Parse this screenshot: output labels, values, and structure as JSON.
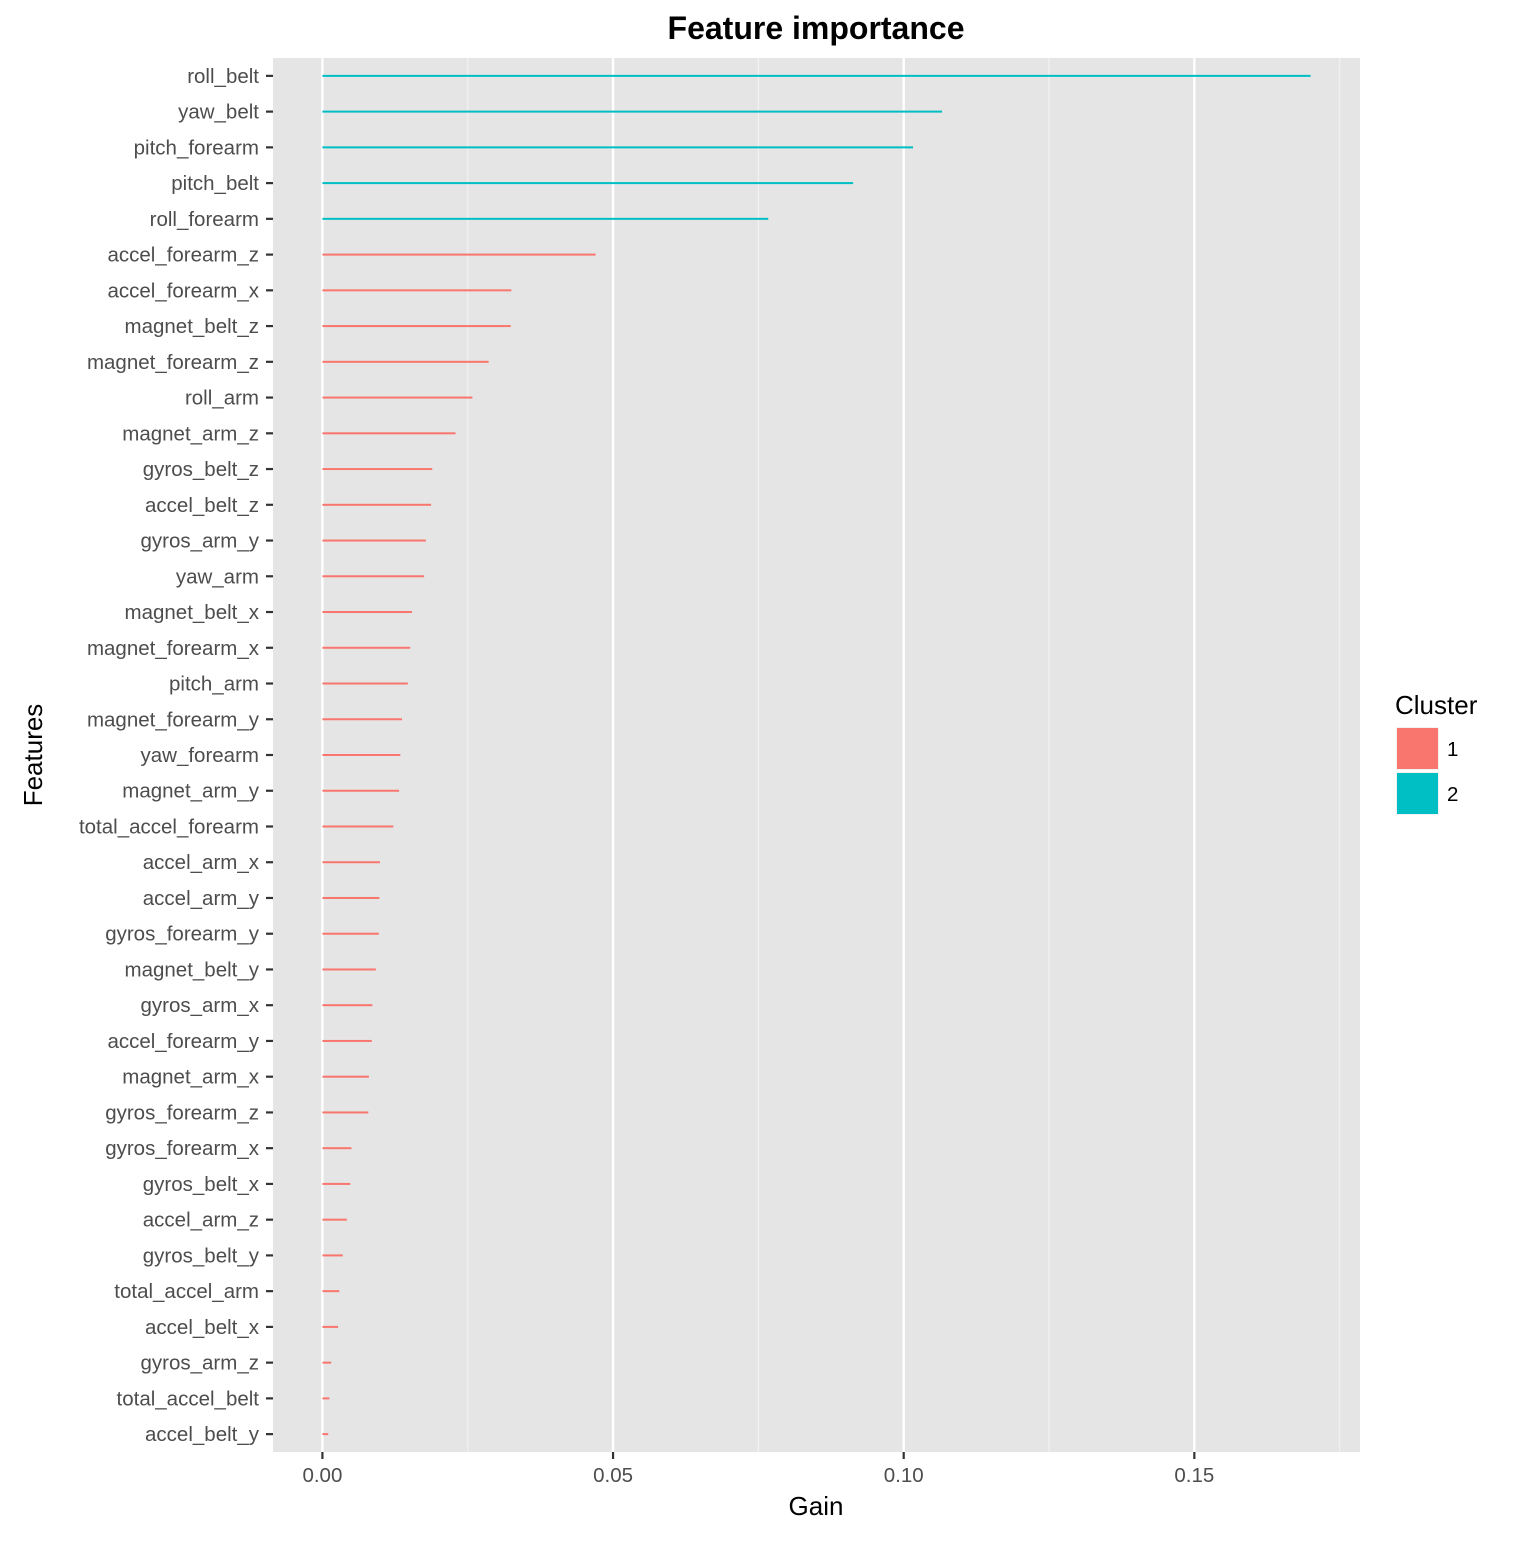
{
  "chart_data": {
    "type": "bar",
    "orientation": "horizontal",
    "title": "Feature importance",
    "xlabel": "Gain",
    "ylabel": "Features",
    "xlim": [
      -0.0085,
      0.1785
    ],
    "x_ticks": [
      0.0,
      0.05,
      0.1,
      0.15
    ],
    "x_tick_labels": [
      "0.00",
      "0.05",
      "0.10",
      "0.15"
    ],
    "grid": true,
    "legend_position": "right",
    "legend": {
      "title": "Cluster",
      "entries": [
        {
          "label": "1",
          "color": "#F8766D"
        },
        {
          "label": "2",
          "color": "#00BFC4"
        }
      ]
    },
    "categories": [
      "roll_belt",
      "yaw_belt",
      "pitch_forearm",
      "pitch_belt",
      "roll_forearm",
      "accel_forearm_z",
      "accel_forearm_x",
      "magnet_belt_z",
      "magnet_forearm_z",
      "roll_arm",
      "magnet_arm_z",
      "gyros_belt_z",
      "accel_belt_z",
      "gyros_arm_y",
      "yaw_arm",
      "magnet_belt_x",
      "magnet_forearm_x",
      "pitch_arm",
      "magnet_forearm_y",
      "yaw_forearm",
      "magnet_arm_y",
      "total_accel_forearm",
      "accel_arm_x",
      "accel_arm_y",
      "gyros_forearm_y",
      "magnet_belt_y",
      "gyros_arm_x",
      "accel_forearm_y",
      "magnet_arm_x",
      "gyros_forearm_z",
      "gyros_forearm_x",
      "gyros_belt_x",
      "accel_arm_z",
      "gyros_belt_y",
      "total_accel_arm",
      "accel_belt_x",
      "gyros_arm_z",
      "total_accel_belt",
      "accel_belt_y"
    ],
    "values": [
      0.17,
      0.1066,
      0.1016,
      0.0913,
      0.0767,
      0.047,
      0.0325,
      0.0324,
      0.0286,
      0.0258,
      0.0229,
      0.0189,
      0.0187,
      0.0178,
      0.0175,
      0.0154,
      0.0151,
      0.0147,
      0.0137,
      0.0134,
      0.0132,
      0.0122,
      0.0099,
      0.0098,
      0.0097,
      0.0092,
      0.0086,
      0.0085,
      0.008,
      0.0079,
      0.005,
      0.0048,
      0.0042,
      0.0035,
      0.0029,
      0.0027,
      0.0015,
      0.0012,
      0.001
    ],
    "clusters": [
      "2",
      "2",
      "2",
      "2",
      "2",
      "1",
      "1",
      "1",
      "1",
      "1",
      "1",
      "1",
      "1",
      "1",
      "1",
      "1",
      "1",
      "1",
      "1",
      "1",
      "1",
      "1",
      "1",
      "1",
      "1",
      "1",
      "1",
      "1",
      "1",
      "1",
      "1",
      "1",
      "1",
      "1",
      "1",
      "1",
      "1",
      "1",
      "1"
    ],
    "colors": {
      "panel_background": "#E5E5E5",
      "grid": "#FFFFFF",
      "cluster_1": "#F8766D",
      "cluster_2": "#00BFC4"
    }
  }
}
